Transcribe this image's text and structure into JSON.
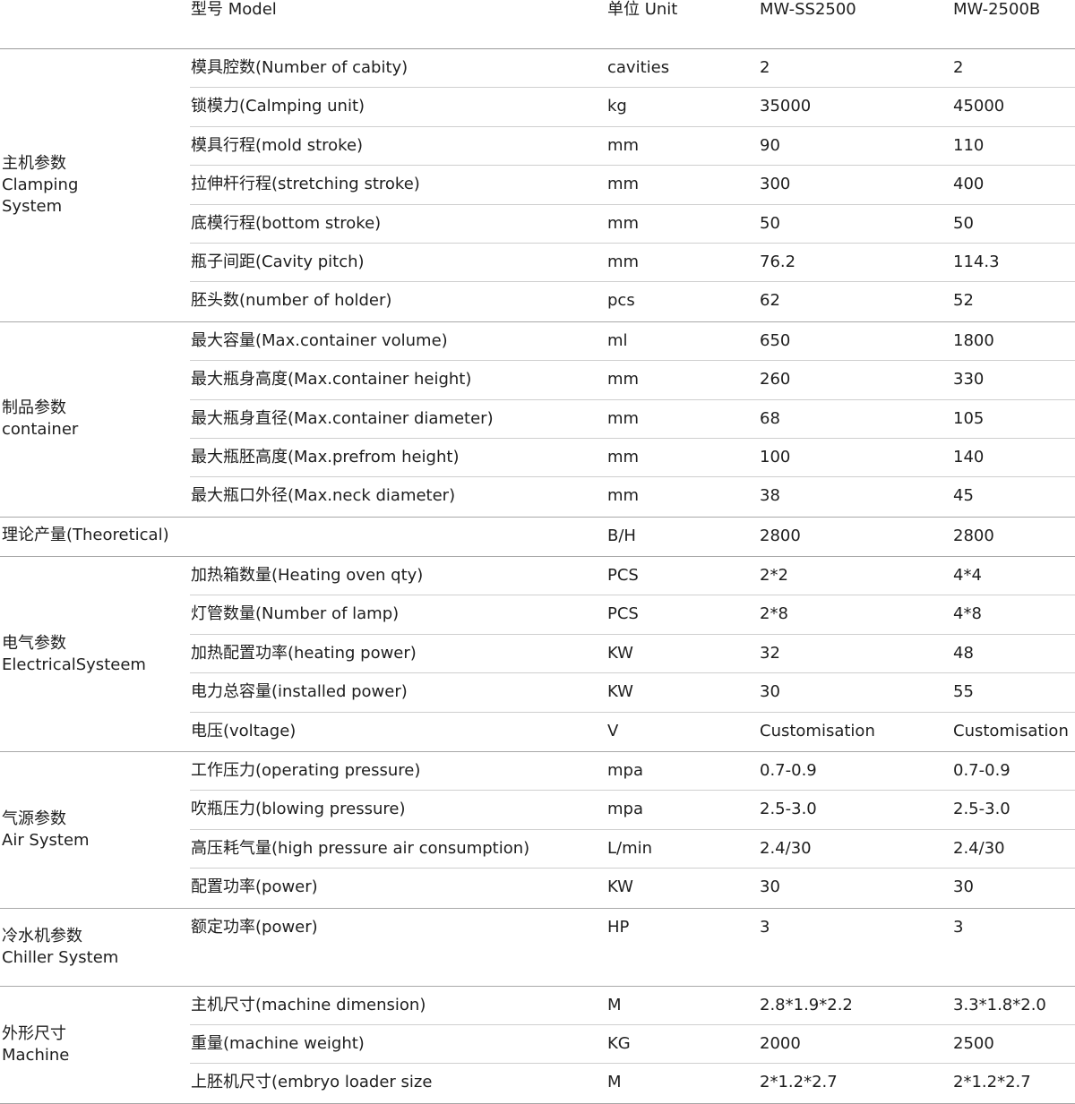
{
  "header": {
    "model": "型号 Model",
    "unit": "单位 Unit",
    "col1": "MW-SS2500",
    "col2": "MW-2500B"
  },
  "groups": [
    {
      "label_cn": "主机参数",
      "label_en": [
        "Clamping",
        "System"
      ],
      "rows": [
        {
          "param": "模具腔数(Number of cabity)",
          "unit": "cavities",
          "v1": "2",
          "v2": "2"
        },
        {
          "param": "锁模力(Calmping unit)",
          "unit": "kg",
          "v1": "35000",
          "v2": "45000"
        },
        {
          "param": "模具行程(mold stroke)",
          "unit": "mm",
          "v1": "90",
          "v2": "110"
        },
        {
          "param": "拉伸杆行程(stretching stroke)",
          "unit": "mm",
          "v1": "300",
          "v2": "400"
        },
        {
          "param": "底模行程(bottom stroke)",
          "unit": "mm",
          "v1": "50",
          "v2": "50"
        },
        {
          "param": "瓶子间距(Cavity pitch)",
          "unit": "mm",
          "v1": "76.2",
          "v2": "114.3"
        },
        {
          "param": "胚头数(number of holder)",
          "unit": "pcs",
          "v1": "62",
          "v2": "52"
        }
      ]
    },
    {
      "label_cn": "制品参数",
      "label_en": [
        "container"
      ],
      "rows": [
        {
          "param": "最大容量(Max.container volume)",
          "unit": "ml",
          "v1": "650",
          "v2": "1800"
        },
        {
          "param": "最大瓶身高度(Max.container height)",
          "unit": "mm",
          "v1": "260",
          "v2": "330"
        },
        {
          "param": "最大瓶身直径(Max.container diameter)",
          "unit": "mm",
          "v1": "68",
          "v2": "105"
        },
        {
          "param": "最大瓶胚高度(Max.prefrom height)",
          "unit": "mm",
          "v1": "100",
          "v2": "140"
        },
        {
          "param": "最大瓶口外径(Max.neck diameter)",
          "unit": "mm",
          "v1": "38",
          "v2": "45"
        }
      ]
    },
    {
      "label_cn": "理论产量(Theoretical)",
      "label_en": [],
      "single": true,
      "rows": [
        {
          "param": "",
          "unit": "B/H",
          "v1": "2800",
          "v2": "2800"
        }
      ]
    },
    {
      "label_cn": "电气参数",
      "label_en": [
        "ElectricalSysteem"
      ],
      "rows": [
        {
          "param": "加热箱数量(Heating oven qty)",
          "unit": "PCS",
          "v1": "2*2",
          "v2": "4*4"
        },
        {
          "param": "灯管数量(Number of lamp)",
          "unit": "PCS",
          "v1": "2*8",
          "v2": "4*8"
        },
        {
          "param": "加热配置功率(heating power)",
          "unit": "KW",
          "v1": "32",
          "v2": "48"
        },
        {
          "param": "电力总容量(installed power)",
          "unit": "KW",
          "v1": "30",
          "v2": "55"
        },
        {
          "param": "电压(voltage)",
          "unit": "V",
          "v1": "Customisation",
          "v2": "Customisation"
        }
      ]
    },
    {
      "label_cn": "气源参数",
      "label_en": [
        "Air System"
      ],
      "rows": [
        {
          "param": "工作压力(operating pressure)",
          "unit": "mpa",
          "v1": "0.7-0.9",
          "v2": "0.7-0.9"
        },
        {
          "param": "吹瓶压力(blowing pressure)",
          "unit": "mpa",
          "v1": "2.5-3.0",
          "v2": "2.5-3.0"
        },
        {
          "param": "高压耗气量(high pressure air consumption)",
          "unit": "L/min",
          "v1": "2.4/30",
          "v2": "2.4/30"
        },
        {
          "param": "配置功率(power)",
          "unit": "KW",
          "v1": "30",
          "v2": "30"
        }
      ]
    },
    {
      "label_cn": "冷水机参数",
      "label_en": [
        "Chiller System"
      ],
      "tall": true,
      "rows": [
        {
          "param": "额定功率(power)",
          "unit": "HP",
          "v1": "3",
          "v2": "3"
        }
      ]
    },
    {
      "label_cn": "外形尺寸",
      "label_en": [
        "Machine"
      ],
      "rows": [
        {
          "param": "主机尺寸(machine dimension)",
          "unit": "M",
          "v1": "2.8*1.9*2.2",
          "v2": "3.3*1.8*2.0"
        },
        {
          "param": "重量(machine weight)",
          "unit": "KG",
          "v1": "2000",
          "v2": "2500"
        },
        {
          "param": "上胚机尺寸(embryo loader size",
          "unit": "M",
          "v1": "2*1.2*2.7",
          "v2": "2*1.2*2.7"
        }
      ]
    }
  ]
}
